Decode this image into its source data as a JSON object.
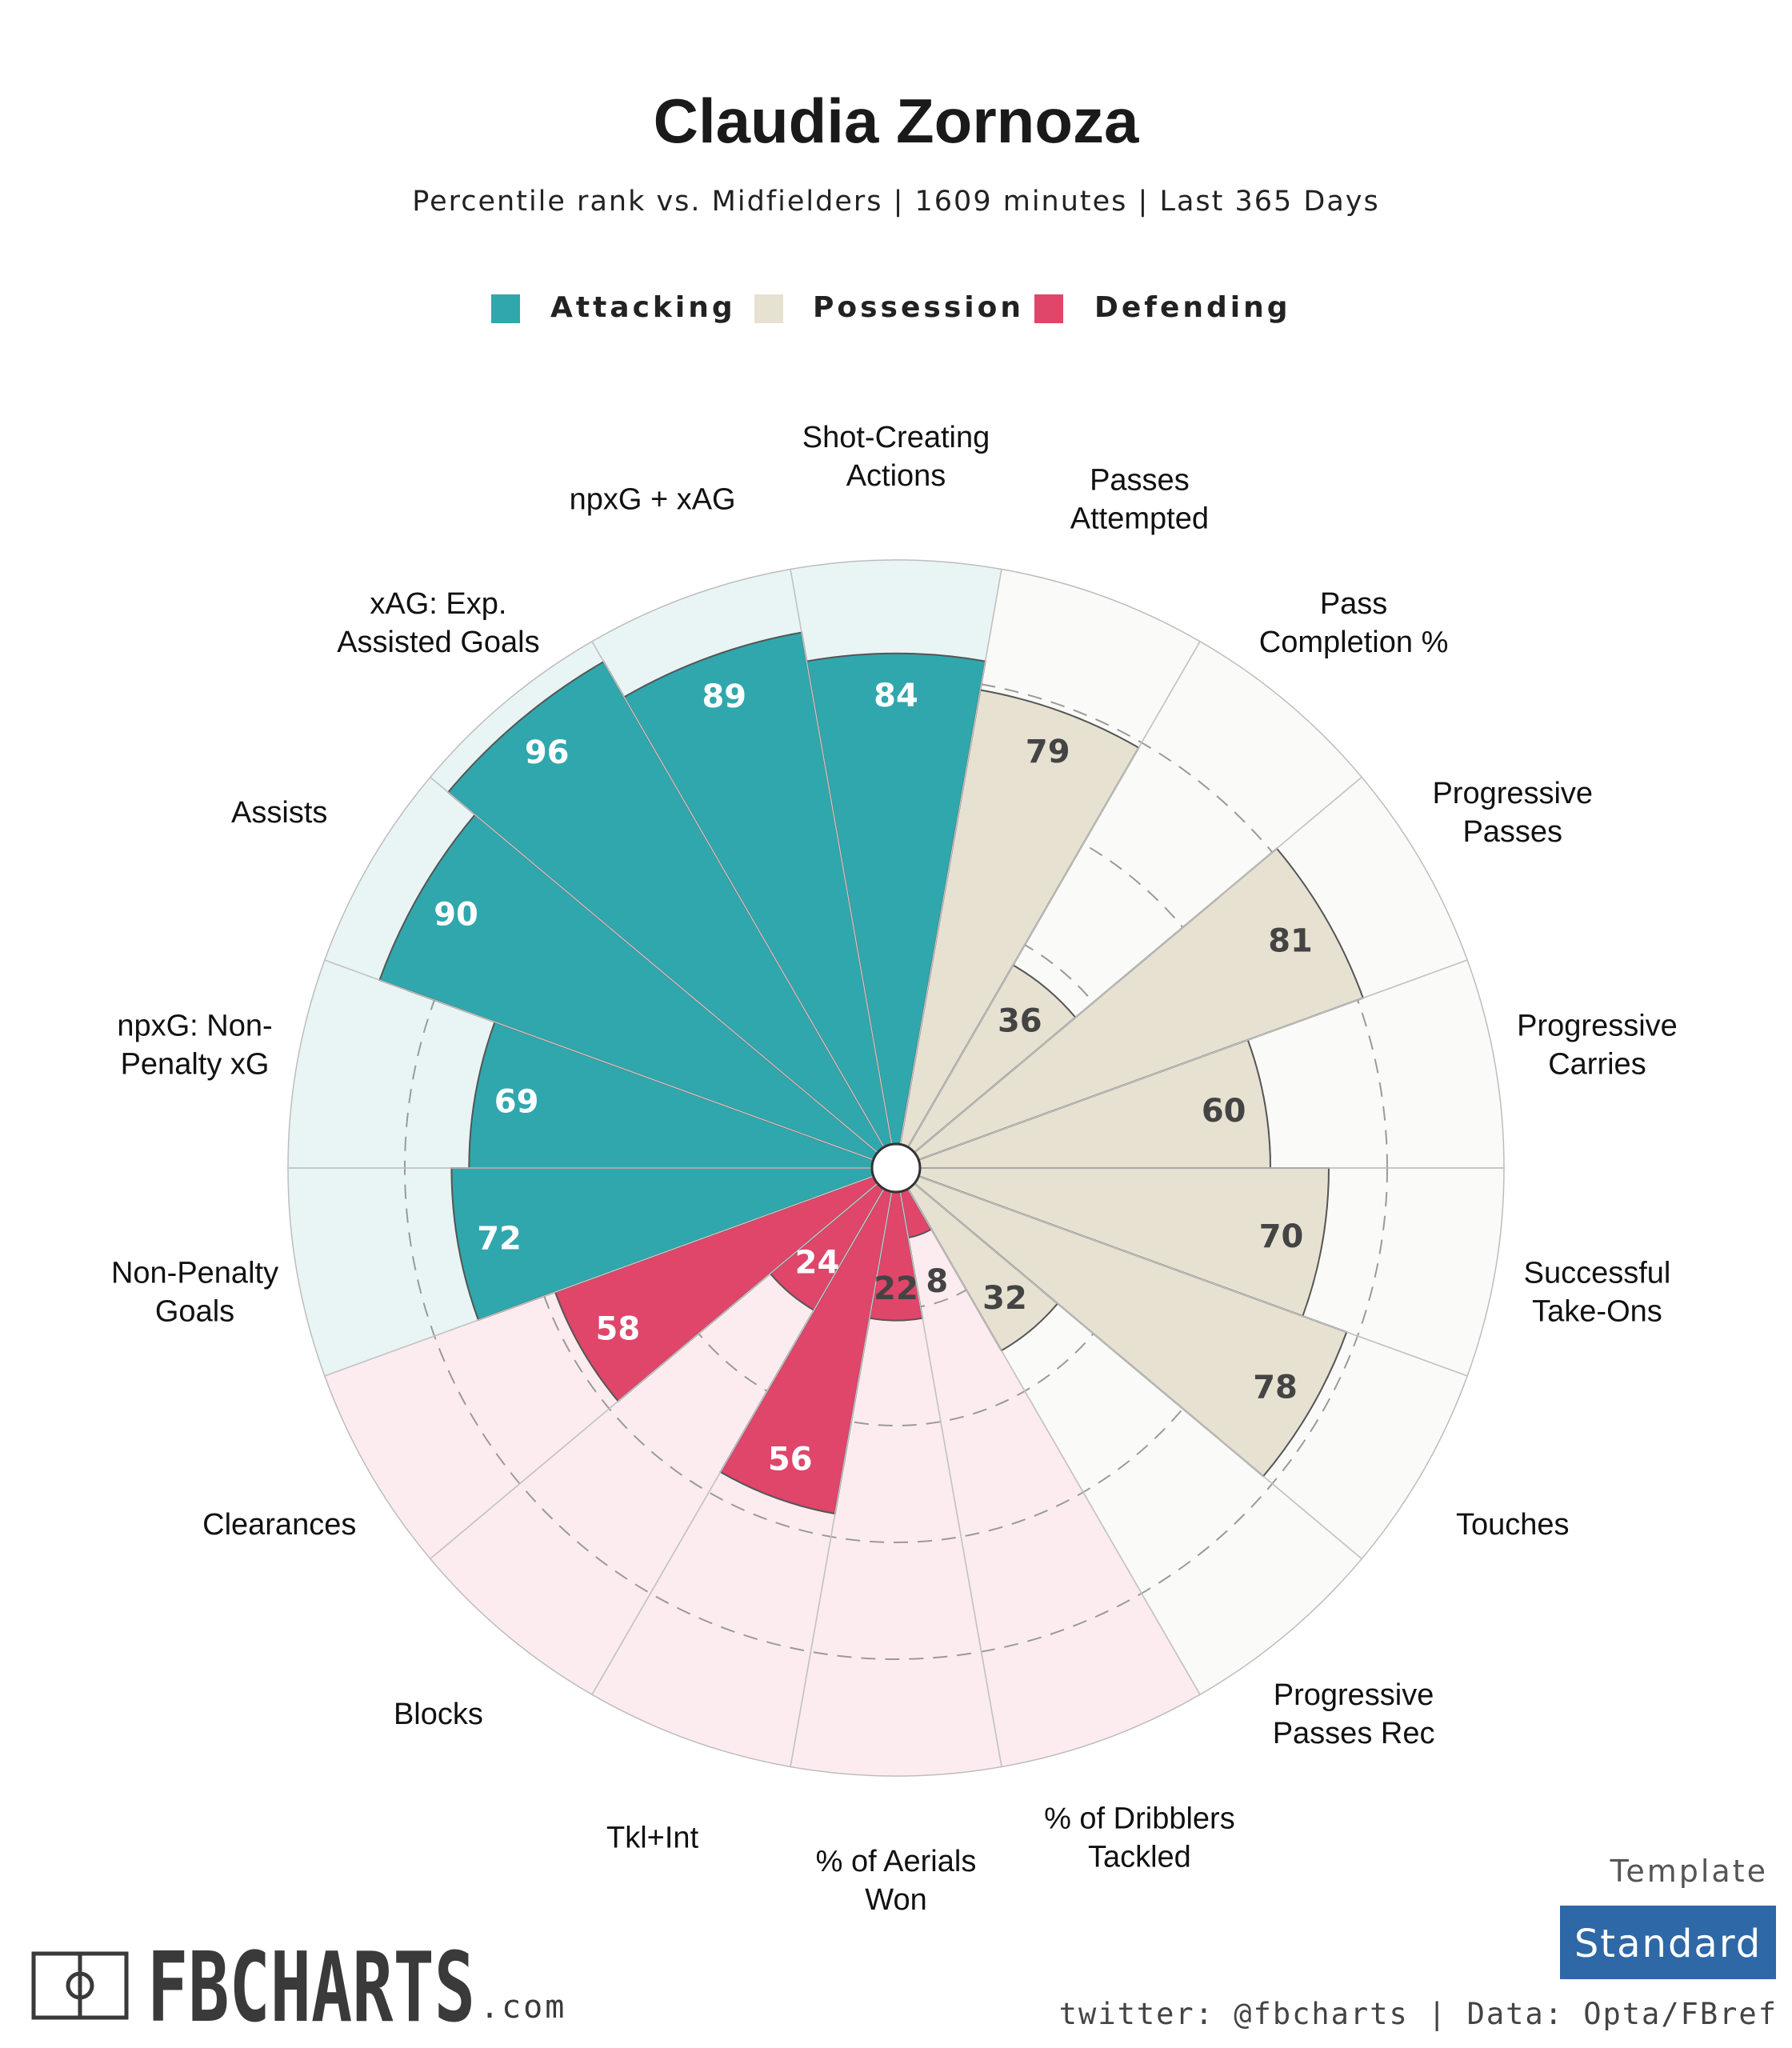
{
  "header": {
    "title": "Claudia Zornoza",
    "subtitle": "Percentile rank vs. Midfielders | 1609 minutes | Last 365 Days"
  },
  "legend": [
    {
      "name": "Attacking",
      "color": "#2fa7ad"
    },
    {
      "name": "Possession",
      "color": "#e6e1d1"
    },
    {
      "name": "Defending",
      "color": "#e0456a"
    }
  ],
  "colors": {
    "attacking_bar": "#2fa7ad",
    "attacking_bg": "#e9f5f5",
    "possession_bar": "#e6e1d1",
    "possession_bg": "#fafaf8",
    "defending_bar": "#e0456a",
    "defending_bg": "#fcecf0",
    "badge": "#2e68a6"
  },
  "chart_data": {
    "type": "polar-bar",
    "title": "Claudia Zornoza",
    "subtitle": "Percentile rank vs. Midfielders | 1609 minutes | Last 365 Days",
    "range": [
      0,
      100
    ],
    "gridlines": [
      20,
      40,
      60,
      80
    ],
    "categories": [
      {
        "label": "Shot-Creating\nActions",
        "value": 84,
        "group": "Attacking"
      },
      {
        "label": "Passes\nAttempted",
        "value": 79,
        "group": "Possession"
      },
      {
        "label": "Pass\nCompletion %",
        "value": 36,
        "group": "Possession"
      },
      {
        "label": "Progressive\nPasses",
        "value": 81,
        "group": "Possession"
      },
      {
        "label": "Progressive\nCarries",
        "value": 60,
        "group": "Possession"
      },
      {
        "label": "Successful\nTake-Ons",
        "value": 70,
        "group": "Possession"
      },
      {
        "label": "Touches",
        "value": 78,
        "group": "Possession"
      },
      {
        "label": "Progressive\nPasses Rec",
        "value": 32,
        "group": "Possession"
      },
      {
        "label": "% of Dribblers\nTackled",
        "value": 8,
        "group": "Defending"
      },
      {
        "label": "% of Aerials\nWon",
        "value": 22,
        "group": "Defending"
      },
      {
        "label": "Tkl+Int",
        "value": 56,
        "group": "Defending"
      },
      {
        "label": "Blocks",
        "value": 24,
        "group": "Defending"
      },
      {
        "label": "Clearances",
        "value": 58,
        "group": "Defending"
      },
      {
        "label": "Non-Penalty\nGoals",
        "value": 72,
        "group": "Attacking"
      },
      {
        "label": "npxG: Non-\nPenalty xG",
        "value": 69,
        "group": "Attacking"
      },
      {
        "label": "Assists",
        "value": 90,
        "group": "Attacking"
      },
      {
        "label": "xAG: Exp.\nAssisted Goals",
        "value": 96,
        "group": "Attacking"
      },
      {
        "label": "npxG + xAG",
        "value": 89,
        "group": "Attacking"
      }
    ]
  },
  "footer": {
    "brand": "FBCHARTS",
    "brand_suffix": ".com",
    "credits": "twitter: @fbcharts | Data: Opta/FBref",
    "template_label": "Template",
    "template_value": "Standard"
  }
}
